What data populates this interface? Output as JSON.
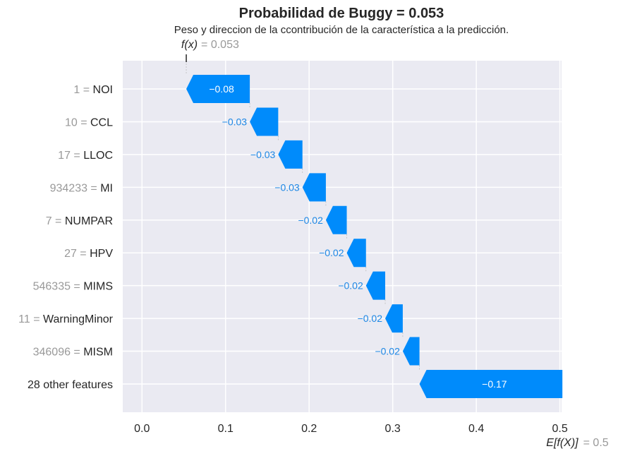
{
  "chart_data": {
    "type": "waterfall",
    "title": "Probabilidad de Buggy = 0.053",
    "subtitle": "Peso y direccion de la ccontribución de la característica a la predicción.",
    "fx": {
      "label": "f(x)",
      "value_text": "= 0.053",
      "value": 0.053
    },
    "base": {
      "label": "E[f(X)]",
      "value_text": "= 0.5",
      "value": 0.5
    },
    "xlim": [
      -0.023,
      0.502
    ],
    "xticks": [
      0.0,
      0.1,
      0.2,
      0.3,
      0.4,
      0.5
    ],
    "xtick_labels": [
      "0.0",
      "0.1",
      "0.2",
      "0.3",
      "0.4",
      "0.5"
    ],
    "grid": true,
    "colors": {
      "negative": "#008BFB",
      "negative_text": "#1E88E5",
      "background": "#EAEAF2",
      "grid": "#FFFFFF",
      "muted": "#999999"
    },
    "features": [
      {
        "value": "1",
        "name": "NOI",
        "contribution": -0.076,
        "label": "−0.08"
      },
      {
        "value": "10",
        "name": "CCL",
        "contribution": -0.034,
        "label": "−0.03"
      },
      {
        "value": "17",
        "name": "LLOC",
        "contribution": -0.029,
        "label": "−0.03"
      },
      {
        "value": "934233",
        "name": "MI",
        "contribution": -0.028,
        "label": "−0.03"
      },
      {
        "value": "7",
        "name": "NUMPAR",
        "contribution": -0.025,
        "label": "−0.02"
      },
      {
        "value": "27",
        "name": "HPV",
        "contribution": -0.023,
        "label": "−0.02"
      },
      {
        "value": "546335",
        "name": "MIMS",
        "contribution": -0.023,
        "label": "−0.02"
      },
      {
        "value": "11",
        "name": "WarningMinor",
        "contribution": -0.021,
        "label": "−0.02"
      },
      {
        "value": "346096",
        "name": "MISM",
        "contribution": -0.02,
        "label": "−0.02"
      },
      {
        "value": "",
        "name": "28 other features",
        "contribution": -0.171,
        "label": "−0.17"
      }
    ]
  }
}
